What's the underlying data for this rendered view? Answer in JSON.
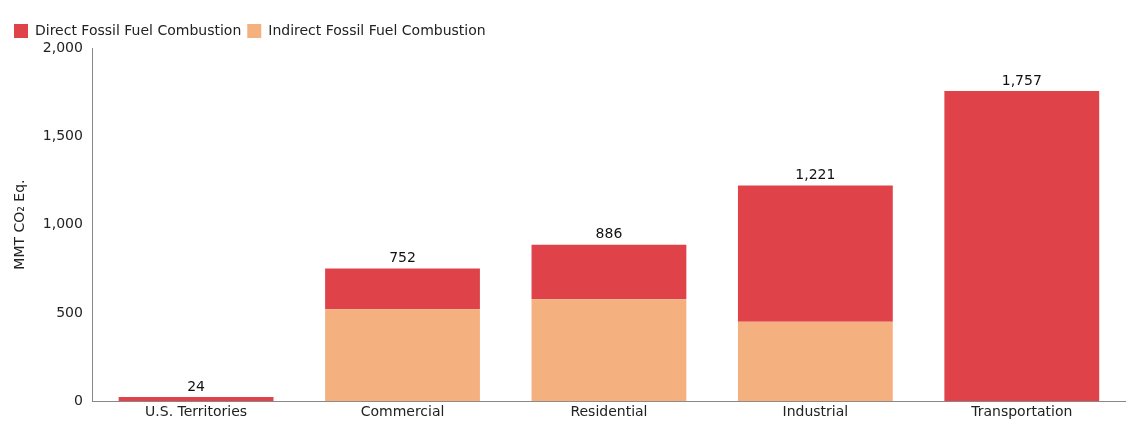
{
  "chart_data": {
    "type": "bar",
    "stacked": true,
    "ylabel": "MMT CO₂ Eq.",
    "categories": [
      "U.S. Territories",
      "Commercial",
      "Residential",
      "Industrial",
      "Transportation"
    ],
    "series": [
      {
        "name": "Indirect Fossil Fuel Combustion",
        "color": "#f5b07f",
        "values": [
          0,
          520,
          578,
          450,
          0
        ]
      },
      {
        "name": "Direct Fossil Fuel Combustion",
        "color": "#e0424a",
        "values": [
          24,
          232,
          308,
          771,
          1757
        ]
      }
    ],
    "totals": [
      "24",
      "752",
      "886",
      "1,221",
      "1,757"
    ],
    "ylim": [
      0,
      2000
    ],
    "yticks": [
      {
        "value": 0,
        "label": "0"
      },
      {
        "value": 500,
        "label": "500"
      },
      {
        "value": 1000,
        "label": "1,000"
      },
      {
        "value": 1500,
        "label": "1,500"
      },
      {
        "value": 2000,
        "label": "2,000"
      }
    ],
    "grid": false,
    "legend": "top left"
  }
}
